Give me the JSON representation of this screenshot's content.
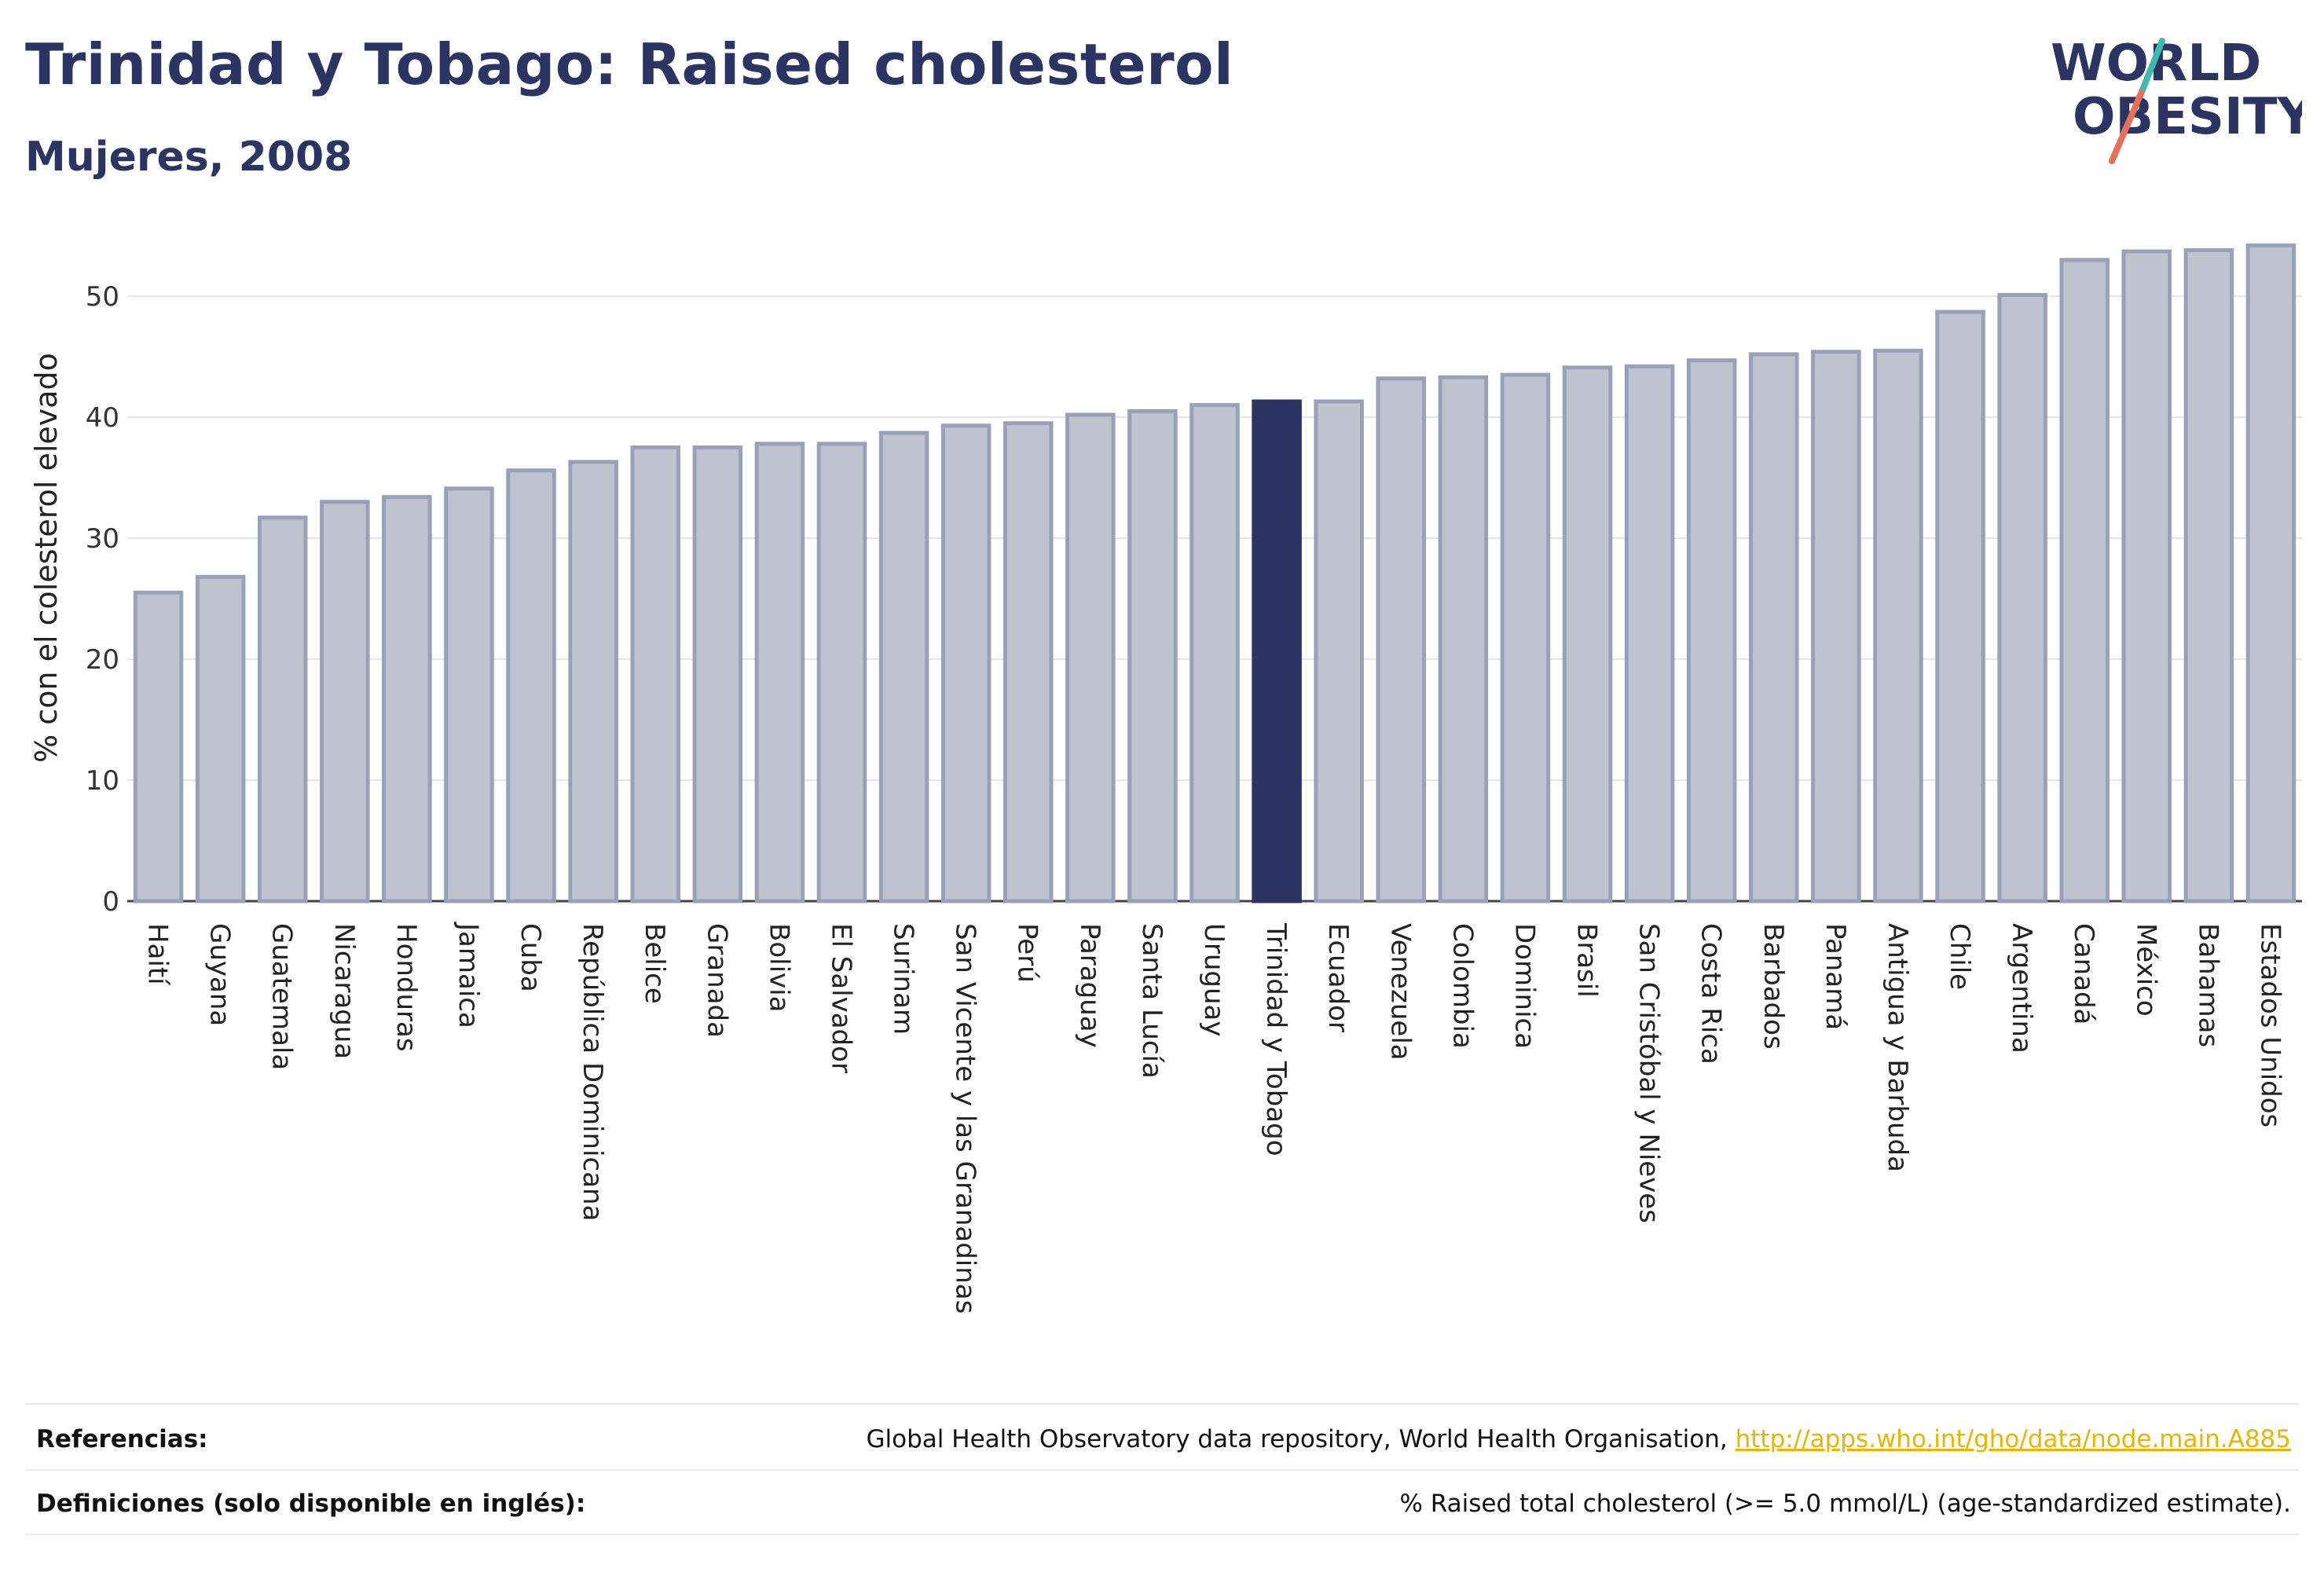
{
  "title": "Trinidad y Tobago: Raised cholesterol",
  "subtitle": "Mujeres, 2008",
  "logo": {
    "line1": "WORLD",
    "line2": "OBESITY"
  },
  "colors": {
    "bar": "#bfc3d0",
    "bar_edge": "#9aa0b8",
    "highlight": "#2b3462",
    "title": "#2b3462",
    "link": "#e8b500"
  },
  "chart_data": {
    "type": "bar",
    "ylabel": "% con el colesterol elevado",
    "ylim": [
      0,
      55
    ],
    "yticks": [
      0,
      10,
      20,
      30,
      40,
      50
    ],
    "grid": true,
    "highlight": "Trinidad y Tobago",
    "categories": [
      "Haití",
      "Guyana",
      "Guatemala",
      "Nicaragua",
      "Honduras",
      "Jamaica",
      "Cuba",
      "República Dominicana",
      "Belice",
      "Granada",
      "Bolivia",
      "El Salvador",
      "Surinam",
      "San Vicente y las Granadinas",
      "Perú",
      "Paraguay",
      "Santa Lucía",
      "Uruguay",
      "Trinidad y Tobago",
      "Ecuador",
      "Venezuela",
      "Colombia",
      "Dominica",
      "Brasil",
      "San Cristóbal y Nieves",
      "Costa Rica",
      "Barbados",
      "Panamá",
      "Antigua y Barbuda",
      "Chile",
      "Argentina",
      "Canadá",
      "México",
      "Bahamas",
      "Estados Unidos"
    ],
    "values": [
      25.5,
      26.8,
      31.7,
      33.0,
      33.4,
      34.1,
      35.6,
      36.3,
      37.5,
      37.5,
      37.8,
      37.8,
      38.7,
      39.3,
      39.5,
      40.2,
      40.5,
      41.0,
      41.3,
      41.3,
      43.2,
      43.3,
      43.5,
      44.1,
      44.2,
      44.7,
      45.2,
      45.4,
      45.5,
      48.7,
      50.1,
      53.0,
      53.7,
      53.8,
      54.2
    ]
  },
  "footer": {
    "ref_label": "Referencias:",
    "ref_text": "Global Health Observatory data repository, World Health Organisation, ",
    "ref_link": "http://apps.who.int/gho/data/node.main.A885",
    "def_label": "Definiciones (solo disponible en inglés):",
    "def_text": "% Raised total cholesterol (>= 5.0 mmol/L) (age-standardized estimate)."
  }
}
